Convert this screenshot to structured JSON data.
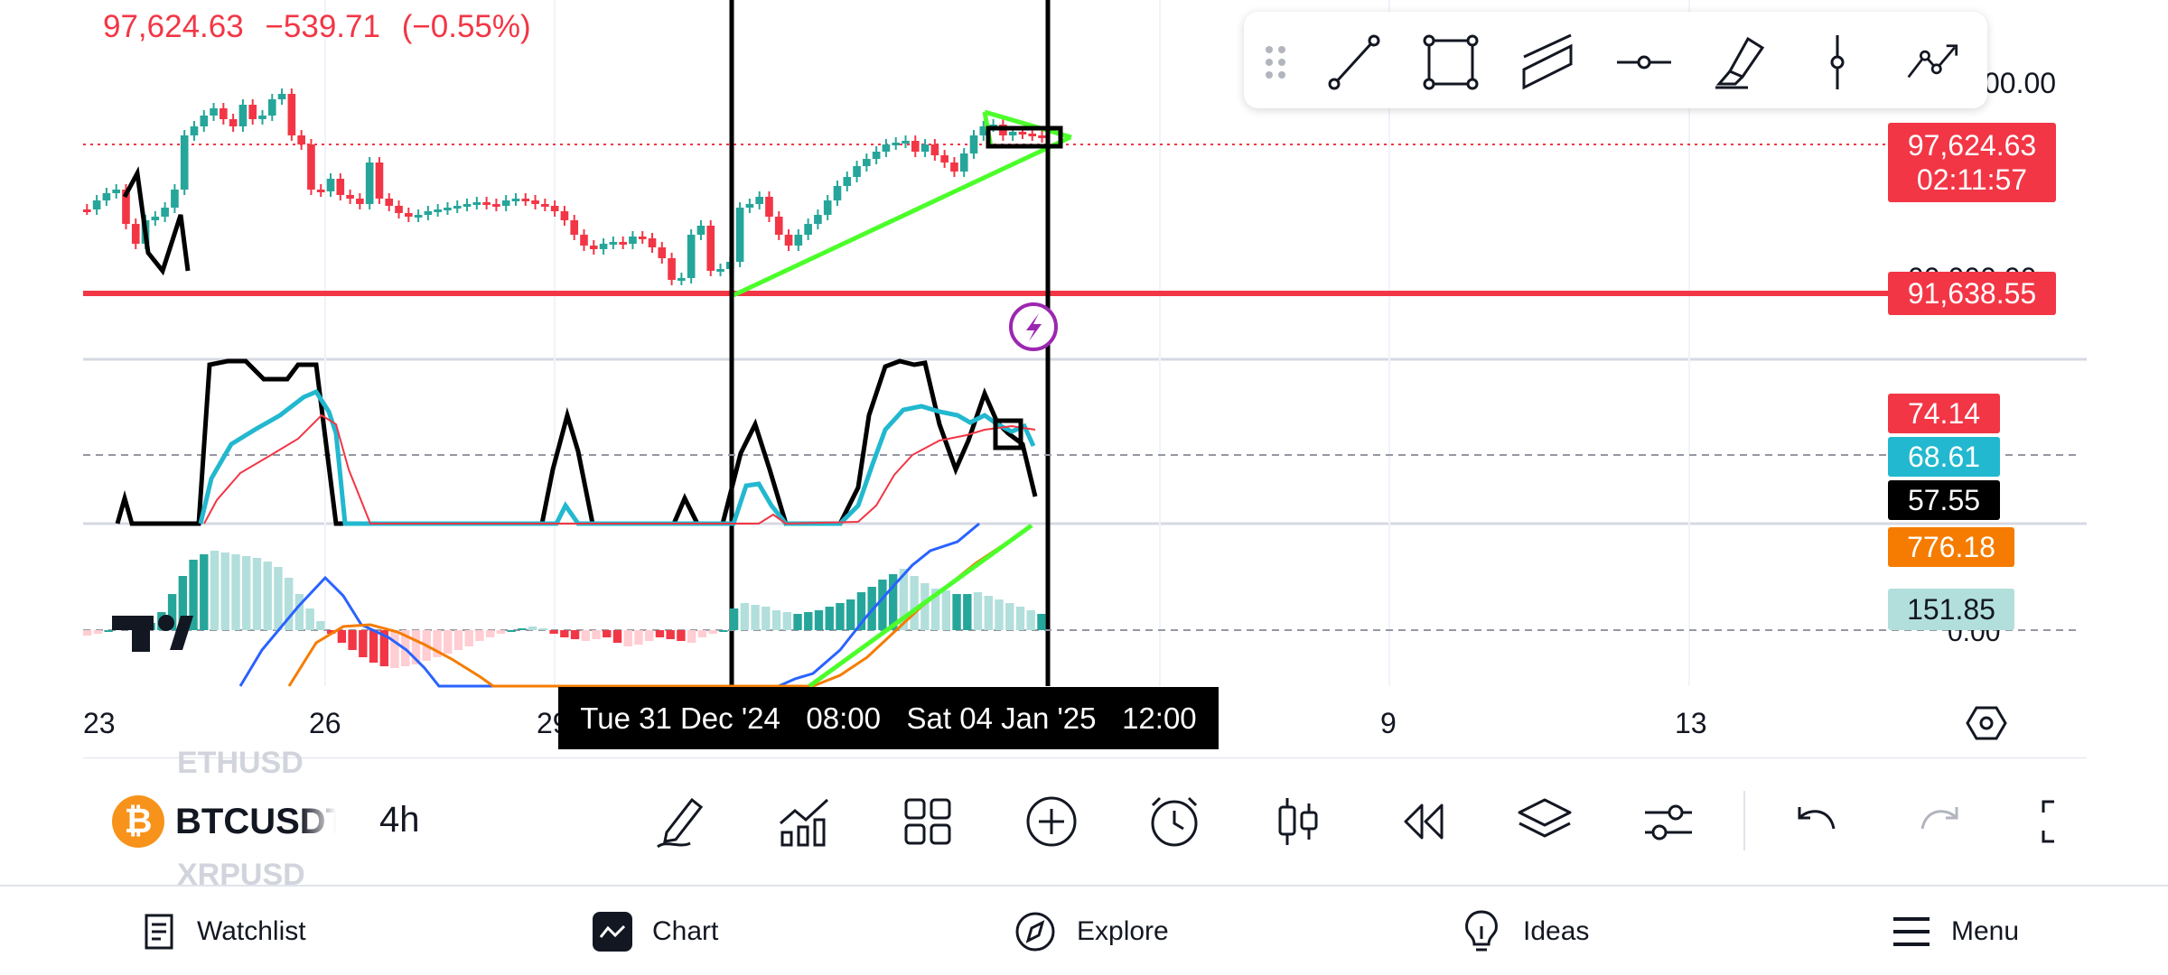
{
  "header": {
    "price": "97,624.63",
    "change": "−539.71",
    "change_pct": "(−0.55%)"
  },
  "price_axis": {
    "top_label": "00.00",
    "current_price": "97,624.63",
    "countdown": "02:11:57",
    "level_price": "91,638.55",
    "hidden_label": "00,000.00"
  },
  "indicator_axis": {
    "rsi_red": "74.14",
    "rsi_cyan": "68.61",
    "rsi_black": "57.55",
    "macd_orange": "776.18",
    "macd_hist": "151.85",
    "zero_label": "0.00"
  },
  "x_axis": {
    "labels": [
      "23",
      "26",
      "29",
      "9",
      "13"
    ]
  },
  "tooltip": {
    "start_date": "Tue 31 Dec '24",
    "start_time": "08:00",
    "end_date": "Sat 04 Jan '25",
    "end_time": "12:00"
  },
  "drawing_toolbar": {
    "tools": [
      "trend-line-icon",
      "rectangle-icon",
      "parallel-channel-icon",
      "horizontal-ray-icon",
      "highlighter-icon",
      "vertical-line-icon",
      "path-icon"
    ]
  },
  "symbol": {
    "prev": "ETHUSD",
    "current": "BTCUSDT",
    "next": "XRPUSD",
    "coin_glyph": "₿",
    "timeframe": "4h"
  },
  "nav": {
    "watchlist": "Watchlist",
    "chart": "Chart",
    "explore": "Explore",
    "ideas": "Ideas",
    "menu": "Menu"
  },
  "colors": {
    "up": "#26a69a",
    "down": "#f23645",
    "rsi_cyan": "#22b8cf",
    "macd_blue": "#2962ff",
    "macd_orange": "#f57c00",
    "trendline": "#4cff2b"
  }
}
